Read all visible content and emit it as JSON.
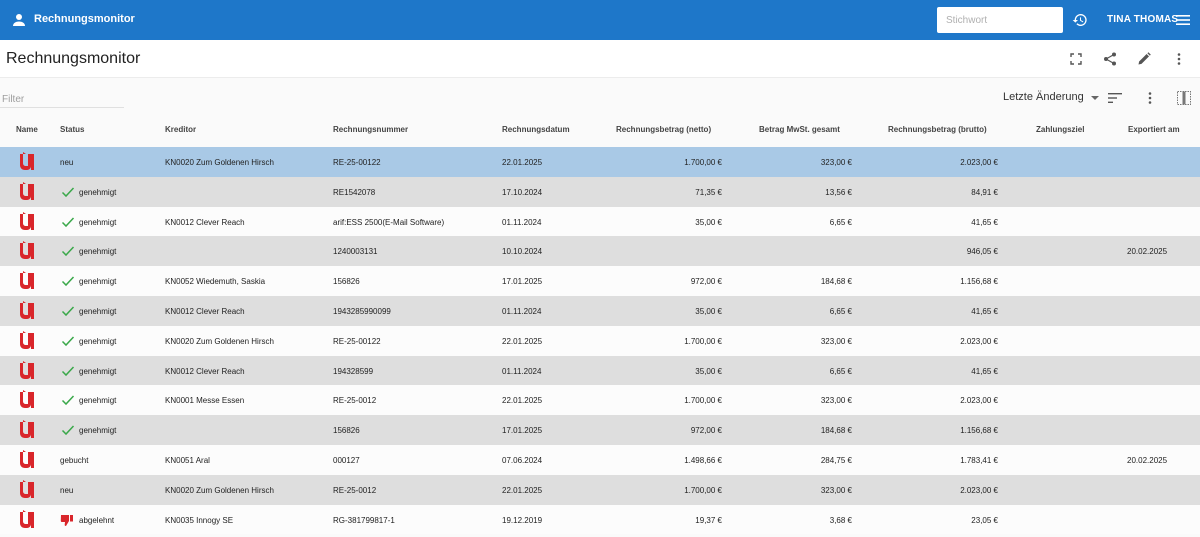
{
  "appbar": {
    "title": "Rechnungsmonitor",
    "search_placeholder": "Stichwort",
    "user_name": "TINA THOMAS",
    "color": "#1e77c9"
  },
  "page": {
    "title": "Rechnungsmonitor",
    "icons": [
      "fullscreen-icon",
      "share-icon",
      "edit-icon",
      "more-vert-icon"
    ]
  },
  "toolbar": {
    "filter_placeholder": "Filter",
    "sort_value": "Letzte Änderung",
    "icons": [
      "sort-lines-icon",
      "more-vert-icon",
      "columns-icon"
    ]
  },
  "table": {
    "columns": [
      "Name",
      "Status",
      "Kreditor",
      "Rechnungsnummer",
      "Rechnungsdatum",
      "Rechnungsbetrag (netto)",
      "Betrag MwSt. gesamt",
      "Rechnungsbetrag (brutto)",
      "Zahlungsziel",
      "Exportiert am"
    ],
    "rows": [
      {
        "status": "neu",
        "status_icon": "",
        "kreditor": "KN0020 Zum Goldenen Hirsch",
        "nummer": "RE-25-00122",
        "datum": "22.01.2025",
        "netto": "1.700,00 €",
        "mwst": "323,00 €",
        "brutto": "2.023,00 €",
        "ziel": "",
        "exportiert": ""
      },
      {
        "status": "genehmigt",
        "status_icon": "check",
        "kreditor": "",
        "nummer": "RE1542078",
        "datum": "17.10.2024",
        "netto": "71,35 €",
        "mwst": "13,56 €",
        "brutto": "84,91 €",
        "ziel": "",
        "exportiert": ""
      },
      {
        "status": "genehmigt",
        "status_icon": "check",
        "kreditor": "KN0012 Clever Reach",
        "nummer": "arif:ESS 2500(E-Mail Software)",
        "datum": "01.11.2024",
        "netto": "35,00 €",
        "mwst": "6,65 €",
        "brutto": "41,65 €",
        "ziel": "",
        "exportiert": ""
      },
      {
        "status": "genehmigt",
        "status_icon": "check",
        "kreditor": "",
        "nummer": "1240003131",
        "datum": "10.10.2024",
        "netto": "",
        "mwst": "",
        "brutto": "946,05 €",
        "ziel": "",
        "exportiert": "20.02.2025"
      },
      {
        "status": "genehmigt",
        "status_icon": "check",
        "kreditor": "KN0052 Wiedemuth, Saskia",
        "nummer": "156826",
        "datum": "17.01.2025",
        "netto": "972,00 €",
        "mwst": "184,68 €",
        "brutto": "1.156,68 €",
        "ziel": "",
        "exportiert": ""
      },
      {
        "status": "genehmigt",
        "status_icon": "check",
        "kreditor": "KN0012 Clever Reach",
        "nummer": "1943285990099",
        "datum": "01.11.2024",
        "netto": "35,00 €",
        "mwst": "6,65 €",
        "brutto": "41,65 €",
        "ziel": "",
        "exportiert": ""
      },
      {
        "status": "genehmigt",
        "status_icon": "check",
        "kreditor": "KN0020 Zum Goldenen Hirsch",
        "nummer": "RE-25-00122",
        "datum": "22.01.2025",
        "netto": "1.700,00 €",
        "mwst": "323,00 €",
        "brutto": "2.023,00 €",
        "ziel": "",
        "exportiert": ""
      },
      {
        "status": "genehmigt",
        "status_icon": "check",
        "kreditor": "KN0012 Clever Reach",
        "nummer": "194328599",
        "datum": "01.11.2024",
        "netto": "35,00 €",
        "mwst": "6,65 €",
        "brutto": "41,65 €",
        "ziel": "",
        "exportiert": ""
      },
      {
        "status": "genehmigt",
        "status_icon": "check",
        "kreditor": "KN0001 Messe Essen",
        "nummer": "RE-25-0012",
        "datum": "22.01.2025",
        "netto": "1.700,00 €",
        "mwst": "323,00 €",
        "brutto": "2.023,00 €",
        "ziel": "",
        "exportiert": ""
      },
      {
        "status": "genehmigt",
        "status_icon": "check",
        "kreditor": "",
        "nummer": "156826",
        "datum": "17.01.2025",
        "netto": "972,00 €",
        "mwst": "184,68 €",
        "brutto": "1.156,68 €",
        "ziel": "",
        "exportiert": ""
      },
      {
        "status": "gebucht",
        "status_icon": "",
        "kreditor": "KN0051 Aral",
        "nummer": "000127",
        "datum": "07.06.2024",
        "netto": "1.498,66 €",
        "mwst": "284,75 €",
        "brutto": "1.783,41 €",
        "ziel": "",
        "exportiert": "20.02.2025"
      },
      {
        "status": "neu",
        "status_icon": "",
        "kreditor": "KN0020 Zum Goldenen Hirsch",
        "nummer": "RE-25-0012",
        "datum": "22.01.2025",
        "netto": "1.700,00 €",
        "mwst": "323,00 €",
        "brutto": "2.023,00 €",
        "ziel": "",
        "exportiert": ""
      },
      {
        "status": "abgelehnt",
        "status_icon": "thumb-down",
        "kreditor": "KN0035 Innogy SE",
        "nummer": "RG-381799817-1",
        "datum": "19.12.2019",
        "netto": "19,37 €",
        "mwst": "3,68 €",
        "brutto": "23,05 €",
        "ziel": "",
        "exportiert": ""
      }
    ]
  },
  "colors": {
    "selected_row": "#a9c9e6",
    "check_green": "#3aa84a",
    "reject_red": "#d9262b",
    "logo_red": "#d9262b"
  }
}
